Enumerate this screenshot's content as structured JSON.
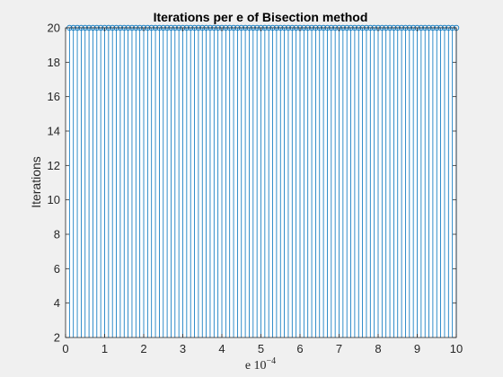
{
  "chart_data": {
    "type": "stem",
    "title": "Iterations per e of Bisection method",
    "xlabel": "e 10",
    "xlabel_exponent": "−4",
    "ylabel": "Iterations",
    "xlim": [
      0,
      10
    ],
    "ylim": [
      2,
      20
    ],
    "xticks": [
      0,
      1,
      2,
      3,
      4,
      5,
      6,
      7,
      8,
      9,
      10
    ],
    "yticks": [
      2,
      4,
      6,
      8,
      10,
      12,
      14,
      16,
      18,
      20
    ],
    "x_start": 0.1,
    "x_end": 10,
    "x_step": 0.1,
    "y_value": 20,
    "marker": "open-circle",
    "grid": false,
    "series_color": "#0072bd"
  }
}
